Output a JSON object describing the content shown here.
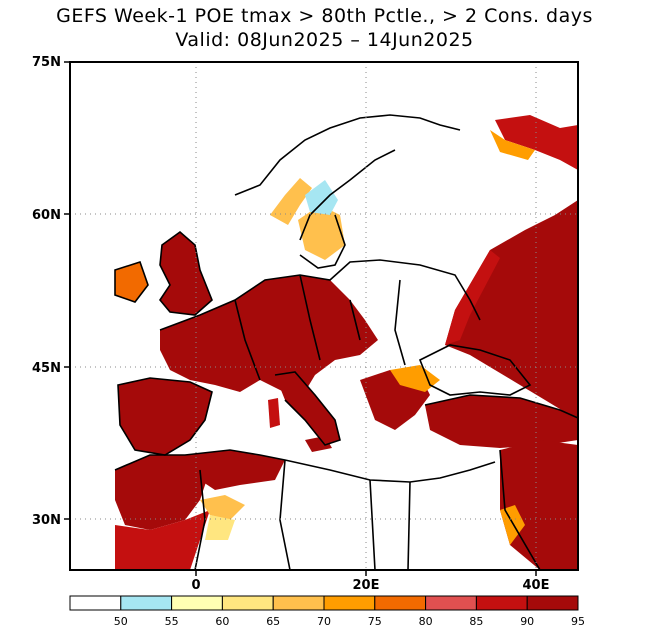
{
  "title_line1": "GEFS Week-1 POE tmax > 80th Pctle., > 2 Cons. days",
  "title_line2": "Valid: 08Jun2025 – 14Jun2025",
  "axes": {
    "lat_ticks": [
      "75N",
      "60N",
      "45N",
      "30N"
    ],
    "lon_ticks": [
      "0",
      "20E",
      "40E"
    ]
  },
  "colorbar": {
    "levels": [
      "50",
      "55",
      "60",
      "65",
      "70",
      "75",
      "80",
      "85",
      "90",
      "95"
    ],
    "colors": [
      "#ffffff",
      "#a6e6f2",
      "#ffffb3",
      "#ffe680",
      "#ffc04d",
      "#ff9d00",
      "#f26a00",
      "#e05050",
      "#c41010",
      "#a50a0a"
    ]
  },
  "palette": {
    "land": "#ffffff",
    "hot": "#a50a0a",
    "warm": "#c41010",
    "border": "#000000"
  }
}
